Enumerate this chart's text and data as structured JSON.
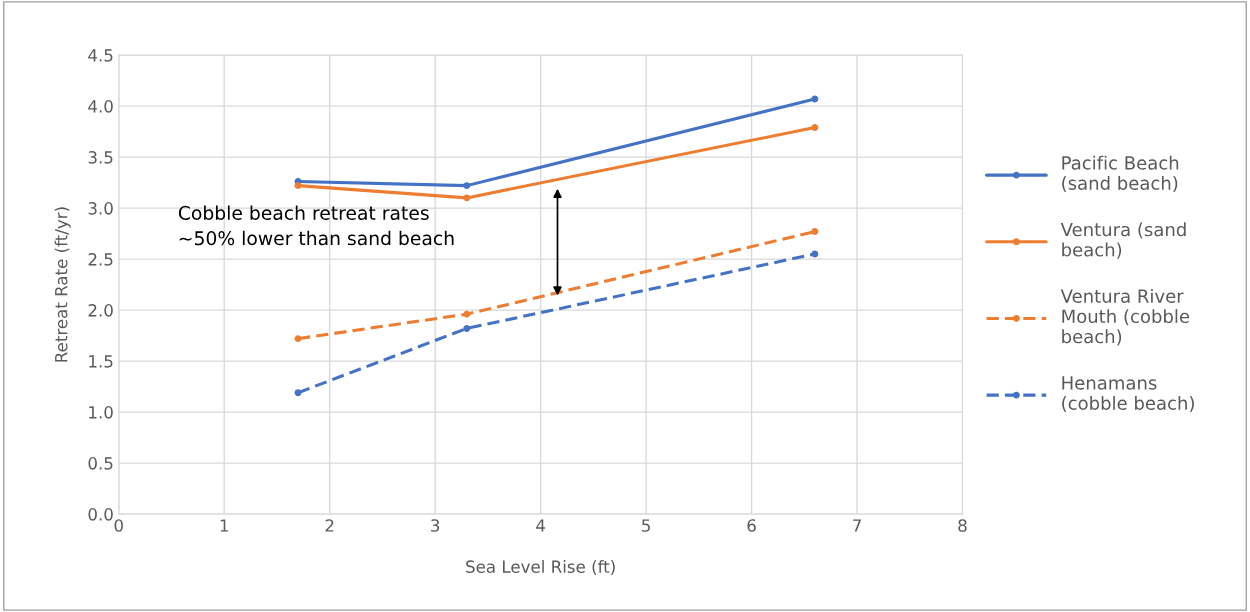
{
  "chart_data": {
    "type": "line",
    "xlabel": "Sea Level Rise (ft)",
    "ylabel": "Retreat Rate (ft/yr)",
    "x": [
      1.7,
      3.3,
      6.6
    ],
    "series": [
      {
        "name": "Pacific Beach (sand beach)",
        "color": "#4472c4",
        "values": [
          3.26,
          3.22,
          4.07
        ],
        "line_style": "solid"
      },
      {
        "name": "Ventura (sand beach)",
        "color": "#ed7d31",
        "values": [
          3.22,
          3.1,
          3.79
        ],
        "line_style": "solid"
      },
      {
        "name": "Ventura River Mouth (cobble beach)",
        "color": "#ed7d31",
        "values": [
          1.72,
          1.96,
          2.77
        ],
        "line_style": "dashed"
      },
      {
        "name": "Henamans (cobble beach)",
        "color": "#4472c4",
        "values": [
          1.19,
          1.82,
          2.55
        ],
        "line_style": "dashed"
      }
    ],
    "xlim": [
      0,
      8
    ],
    "xticks": [
      0,
      1,
      2,
      3,
      4,
      5,
      6,
      7,
      8
    ],
    "ylim": [
      0,
      4.5
    ],
    "yticks": [
      {
        "value": 0,
        "label": "0.0"
      },
      {
        "value": 0.5,
        "label": "0.5"
      },
      {
        "value": 1,
        "label": "1.0"
      },
      {
        "value": 1.5,
        "label": "1.5"
      },
      {
        "value": 2,
        "label": "2.0"
      },
      {
        "value": 2.5,
        "label": "2.5"
      },
      {
        "value": 3,
        "label": "3.0"
      },
      {
        "value": 3.5,
        "label": "3.5"
      },
      {
        "value": 4,
        "label": "4.0"
      },
      {
        "value": 4.5,
        "label": "4.5"
      }
    ],
    "annotations": [
      "Cobble beach retreat rates\n~50% lower than sand beach"
    ],
    "grid": true,
    "legend": "right",
    "marker": "circle"
  }
}
